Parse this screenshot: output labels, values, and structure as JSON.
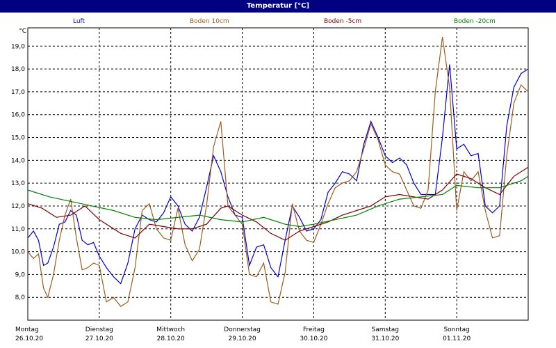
{
  "window": {
    "title": "Temperatur [°C]"
  },
  "chart_data": {
    "type": "line",
    "title": "Temperatur [°C]",
    "ylabel": "°C",
    "ylim": [
      7.0,
      19.8
    ],
    "yticks": [
      8.0,
      9.0,
      10.0,
      11.0,
      12.0,
      13.0,
      14.0,
      15.0,
      16.0,
      17.0,
      18.0,
      19.0
    ],
    "ytick_labels": [
      "8,0",
      "9,0",
      "10,0",
      "11,0",
      "12,0",
      "13,0",
      "14,0",
      "15,0",
      "16,0",
      "17,0",
      "18,0",
      "19,0"
    ],
    "xlim": [
      0,
      7
    ],
    "days": [
      {
        "weekday": "Montag",
        "date": "26.10.20"
      },
      {
        "weekday": "Dienstag",
        "date": "27.10.20"
      },
      {
        "weekday": "Mittwoch",
        "date": "28.10.20"
      },
      {
        "weekday": "Donnerstag",
        "date": "29.10.20"
      },
      {
        "weekday": "Freitag",
        "date": "30.10.20"
      },
      {
        "weekday": "Samstag",
        "date": "31.10.20"
      },
      {
        "weekday": "Sonntag",
        "date": "01.11.20"
      }
    ],
    "grid": true,
    "series": [
      {
        "name": "Luft",
        "color": "#0000cc",
        "x": [
          0,
          0.08,
          0.15,
          0.22,
          0.28,
          0.36,
          0.44,
          0.52,
          0.6,
          0.68,
          0.76,
          0.84,
          0.92,
          1.0,
          1.1,
          1.2,
          1.3,
          1.4,
          1.5,
          1.6,
          1.7,
          1.8,
          1.9,
          2.0,
          2.1,
          2.2,
          2.3,
          2.4,
          2.5,
          2.6,
          2.7,
          2.8,
          2.9,
          3.0,
          3.1,
          3.2,
          3.3,
          3.4,
          3.5,
          3.6,
          3.7,
          3.8,
          3.9,
          4.0,
          4.1,
          4.2,
          4.3,
          4.4,
          4.5,
          4.6,
          4.7,
          4.8,
          4.9,
          5.0,
          5.1,
          5.2,
          5.3,
          5.4,
          5.5,
          5.6,
          5.7,
          5.8,
          5.9,
          6.0,
          6.1,
          6.2,
          6.3,
          6.4,
          6.5,
          6.6,
          6.7,
          6.8,
          6.9,
          7.0
        ],
        "y": [
          10.6,
          10.9,
          10.5,
          9.4,
          9.5,
          10.2,
          11.2,
          11.3,
          11.8,
          11.6,
          10.5,
          10.3,
          10.4,
          9.8,
          9.3,
          8.9,
          8.6,
          9.5,
          11.0,
          11.6,
          11.4,
          11.3,
          11.7,
          12.4,
          12.0,
          11.2,
          10.9,
          11.5,
          12.8,
          14.2,
          13.5,
          12.4,
          11.6,
          11.5,
          9.4,
          10.2,
          10.3,
          9.3,
          8.9,
          10.5,
          12.0,
          11.5,
          10.9,
          11.0,
          11.4,
          12.6,
          13.0,
          13.5,
          13.4,
          13.1,
          14.7,
          15.7,
          15.0,
          14.2,
          13.9,
          14.1,
          13.8,
          13.0,
          12.5,
          12.5,
          12.5,
          15.0,
          18.2,
          14.5,
          14.7,
          14.2,
          14.3,
          12.0,
          11.7,
          12.0,
          15.5,
          17.2,
          17.8,
          18.0
        ]
      },
      {
        "name": "Boden 10cm",
        "color": "#a05a1e",
        "x": [
          0,
          0.08,
          0.15,
          0.22,
          0.28,
          0.36,
          0.44,
          0.52,
          0.6,
          0.68,
          0.76,
          0.84,
          0.92,
          1.0,
          1.1,
          1.2,
          1.3,
          1.4,
          1.5,
          1.6,
          1.7,
          1.8,
          1.9,
          2.0,
          2.1,
          2.2,
          2.3,
          2.4,
          2.5,
          2.6,
          2.7,
          2.8,
          2.9,
          3.0,
          3.1,
          3.2,
          3.3,
          3.4,
          3.5,
          3.6,
          3.7,
          3.8,
          3.9,
          4.0,
          4.1,
          4.2,
          4.3,
          4.4,
          4.5,
          4.6,
          4.7,
          4.8,
          4.9,
          5.0,
          5.1,
          5.2,
          5.3,
          5.4,
          5.5,
          5.6,
          5.7,
          5.8,
          5.9,
          6.0,
          6.1,
          6.2,
          6.3,
          6.4,
          6.5,
          6.6,
          6.7,
          6.8,
          6.9,
          7.0
        ],
        "y": [
          10.0,
          9.7,
          9.9,
          8.4,
          8.0,
          9.0,
          10.5,
          11.6,
          12.3,
          10.6,
          9.2,
          9.3,
          9.5,
          9.4,
          7.8,
          8.0,
          7.6,
          7.8,
          9.3,
          11.8,
          12.1,
          11.0,
          10.6,
          10.5,
          11.9,
          10.3,
          9.6,
          10.1,
          12.0,
          14.6,
          15.7,
          12.0,
          11.6,
          11.2,
          9.0,
          8.9,
          9.5,
          7.8,
          7.7,
          9.1,
          12.1,
          10.9,
          10.5,
          10.4,
          11.2,
          12.1,
          12.8,
          13.0,
          13.1,
          13.5,
          14.5,
          15.6,
          14.9,
          13.8,
          13.5,
          13.4,
          12.7,
          12.0,
          11.9,
          12.7,
          17.0,
          19.4,
          17.2,
          11.8,
          13.5,
          13.1,
          13.5,
          11.8,
          10.6,
          10.7,
          14.2,
          16.5,
          17.3,
          17.0
        ]
      },
      {
        "name": "Boden -5cm",
        "color": "#800000",
        "x": [
          0,
          0.2,
          0.4,
          0.6,
          0.8,
          1.0,
          1.3,
          1.5,
          1.7,
          1.9,
          2.1,
          2.3,
          2.5,
          2.7,
          2.8,
          3.0,
          3.2,
          3.4,
          3.6,
          3.8,
          4.0,
          4.2,
          4.4,
          4.6,
          4.8,
          5.0,
          5.2,
          5.4,
          5.6,
          5.8,
          6.0,
          6.2,
          6.4,
          6.6,
          6.8,
          7.0
        ],
        "y": [
          12.1,
          11.9,
          11.5,
          11.6,
          12.0,
          11.4,
          10.8,
          10.6,
          11.2,
          11.1,
          11.0,
          11.0,
          11.2,
          11.9,
          12.0,
          11.6,
          11.3,
          10.8,
          10.5,
          10.9,
          11.1,
          11.3,
          11.6,
          11.8,
          12.0,
          12.4,
          12.5,
          12.4,
          12.3,
          12.7,
          13.4,
          13.2,
          12.8,
          12.5,
          13.3,
          13.7
        ]
      },
      {
        "name": "Boden -20cm",
        "color": "#008000",
        "x": [
          0,
          0.3,
          0.6,
          0.9,
          1.2,
          1.5,
          1.8,
          2.1,
          2.4,
          2.7,
          3.0,
          3.3,
          3.6,
          3.8,
          4.0,
          4.3,
          4.6,
          4.9,
          5.2,
          5.5,
          5.8,
          6.0,
          6.3,
          6.6,
          6.9,
          7.0
        ],
        "y": [
          12.7,
          12.4,
          12.2,
          12.0,
          11.8,
          11.5,
          11.4,
          11.5,
          11.6,
          11.4,
          11.3,
          11.5,
          11.2,
          11.1,
          11.2,
          11.4,
          11.6,
          12.0,
          12.3,
          12.4,
          12.5,
          12.9,
          12.8,
          12.8,
          13.1,
          13.3
        ]
      }
    ]
  }
}
